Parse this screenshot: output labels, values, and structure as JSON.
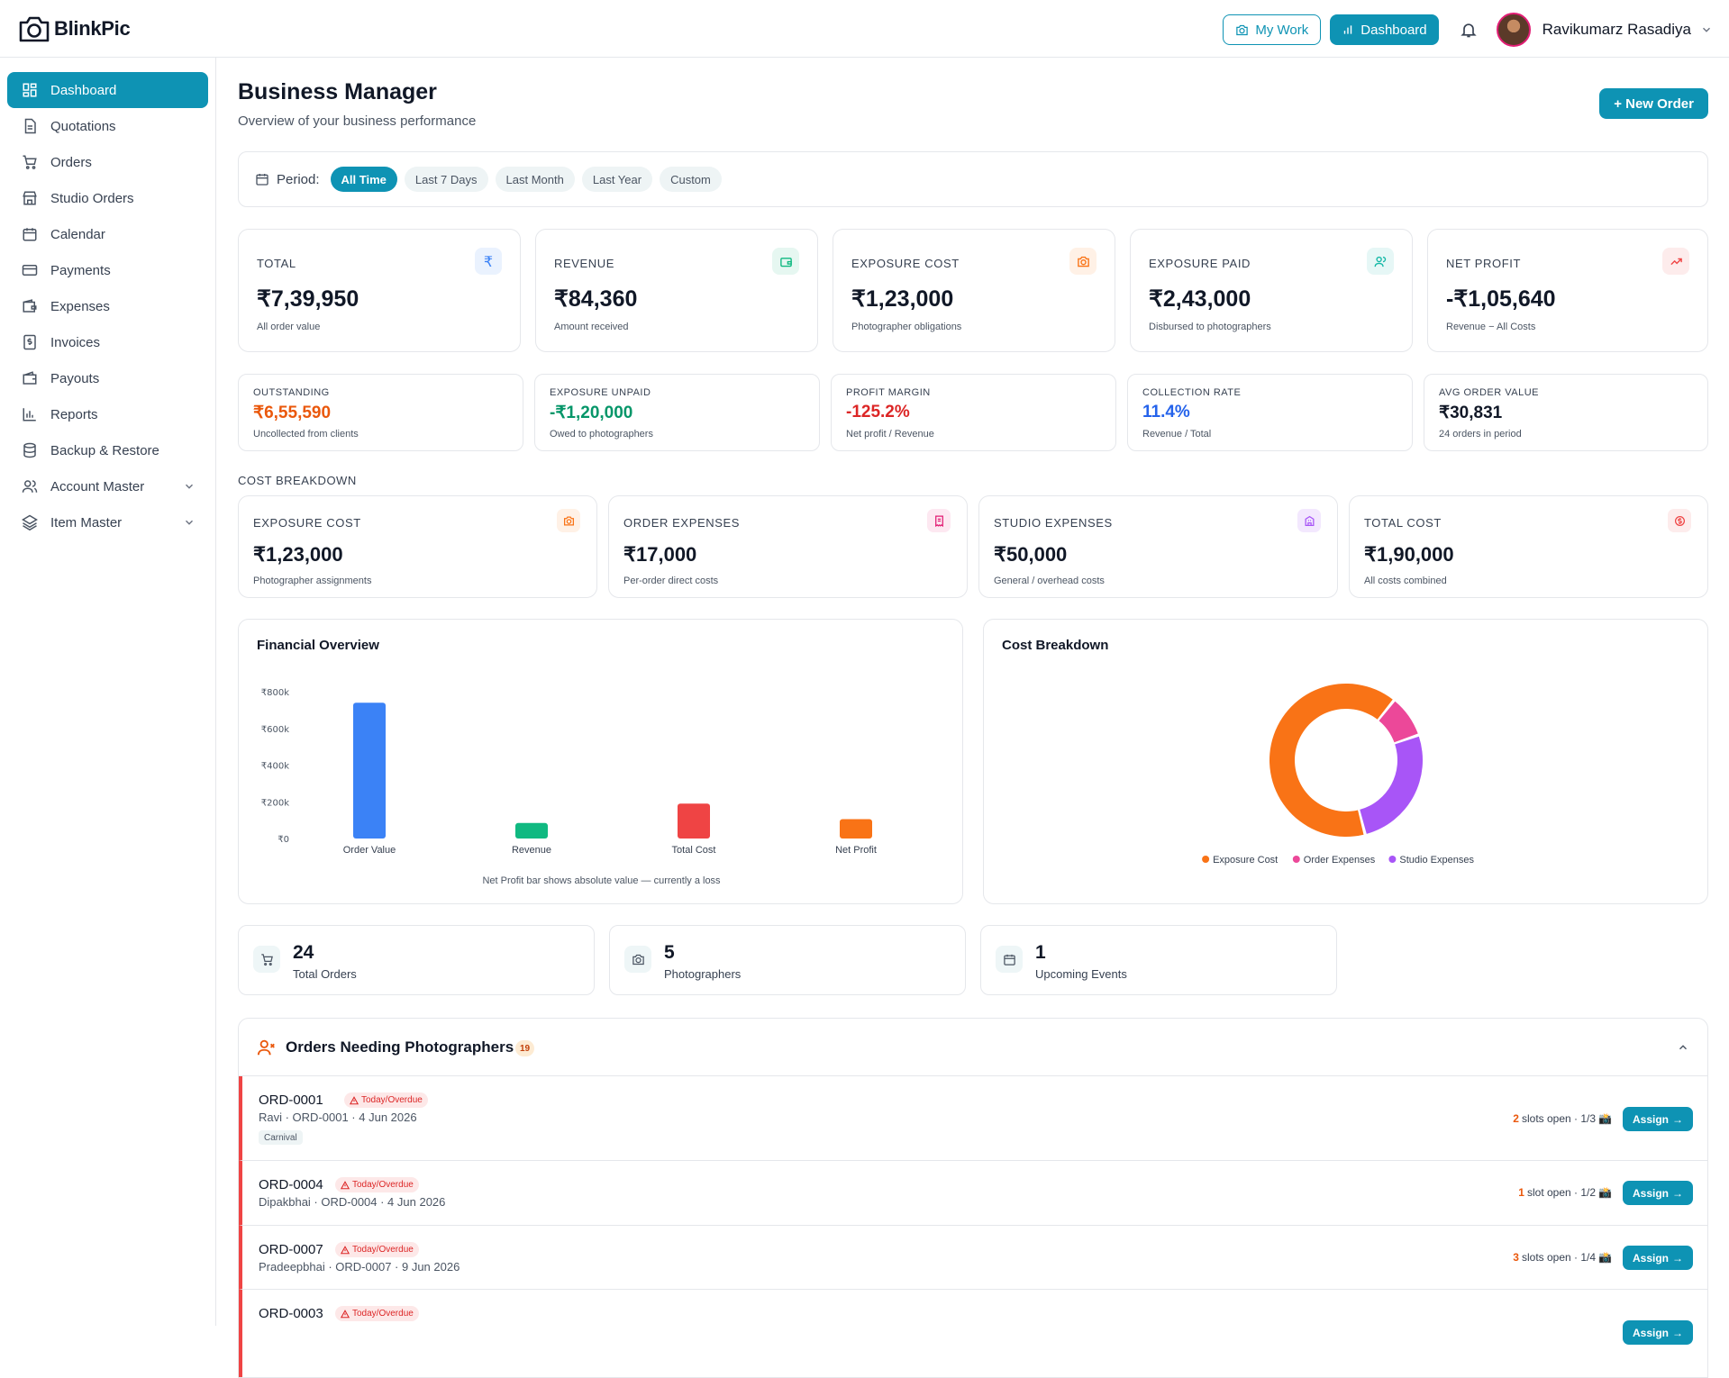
{
  "app": {
    "name": "BlinkPic"
  },
  "header": {
    "my_work_label": "My Work",
    "dashboard_label": "Dashboard",
    "user_name": "Ravikumarz Rasadiya"
  },
  "sidebar": {
    "items": [
      {
        "label": "Dashboard",
        "icon": "dashboard-icon",
        "active": true
      },
      {
        "label": "Quotations",
        "icon": "document-icon"
      },
      {
        "label": "Orders",
        "icon": "cart-icon"
      },
      {
        "label": "Studio Orders",
        "icon": "store-icon"
      },
      {
        "label": "Calendar",
        "icon": "calendar-icon"
      },
      {
        "label": "Payments",
        "icon": "credit-card-icon"
      },
      {
        "label": "Expenses",
        "icon": "wallet-icon"
      },
      {
        "label": "Invoices",
        "icon": "invoice-icon"
      },
      {
        "label": "Payouts",
        "icon": "payout-icon"
      },
      {
        "label": "Reports",
        "icon": "bar-chart-icon"
      },
      {
        "label": "Backup & Restore",
        "icon": "database-icon"
      },
      {
        "label": "Account Master",
        "icon": "users-icon",
        "expandable": true
      },
      {
        "label": "Item Master",
        "icon": "layers-icon",
        "expandable": true
      }
    ]
  },
  "page": {
    "title": "Business Manager",
    "subtitle": "Overview of your business performance",
    "new_order_label": "+ New Order"
  },
  "period": {
    "label": "Period:",
    "options": [
      "All Time",
      "Last 7 Days",
      "Last Month",
      "Last Year",
      "Custom"
    ],
    "selected": "All Time"
  },
  "kpis": [
    {
      "label": "TOTAL",
      "value": "₹7,39,950",
      "sub": "All order value",
      "icon": "rupee-icon",
      "color": "#3b82f6",
      "bg": "#eaf2fe"
    },
    {
      "label": "REVENUE",
      "value": "₹84,360",
      "sub": "Amount received",
      "icon": "wallet-icon",
      "color": "#10b981",
      "bg": "#e6f7f1"
    },
    {
      "label": "EXPOSURE COST",
      "value": "₹1,23,000",
      "sub": "Photographer obligations",
      "icon": "camera-icon",
      "color": "#f97316",
      "bg": "#fff1e6"
    },
    {
      "label": "EXPOSURE PAID",
      "value": "₹2,43,000",
      "sub": "Disbursed to photographers",
      "icon": "users-icon",
      "color": "#14b8a6",
      "bg": "#e6f7f6"
    },
    {
      "label": "NET PROFIT",
      "value": "-₹1,05,640",
      "sub": "Revenue − All Costs",
      "icon": "trending-icon",
      "color": "#ef4444",
      "bg": "#fdecec"
    }
  ],
  "stats": [
    {
      "label": "OUTSTANDING",
      "value": "₹6,55,590",
      "sub": "Uncollected from clients",
      "color": "#ea580c"
    },
    {
      "label": "EXPOSURE UNPAID",
      "value": "-₹1,20,000",
      "sub": "Owed to photographers",
      "color": "#059669"
    },
    {
      "label": "PROFIT MARGIN",
      "value": "-125.2%",
      "sub": "Net profit / Revenue",
      "color": "#dc2626"
    },
    {
      "label": "COLLECTION RATE",
      "value": "11.4%",
      "sub": "Revenue / Total",
      "color": "#2563eb"
    },
    {
      "label": "AVG ORDER VALUE",
      "value": "₹30,831",
      "sub": "24 orders in period",
      "color": "#111827"
    }
  ],
  "cost_breakdown": {
    "heading": "COST BREAKDOWN",
    "cards": [
      {
        "label": "EXPOSURE COST",
        "value": "₹1,23,000",
        "sub": "Photographer assignments",
        "icon": "camera-icon",
        "color": "#f97316",
        "bg": "#fff1e6"
      },
      {
        "label": "ORDER EXPENSES",
        "value": "₹17,000",
        "sub": "Per-order direct costs",
        "icon": "receipt-icon",
        "color": "#e11d74",
        "bg": "#fde8f1"
      },
      {
        "label": "STUDIO EXPENSES",
        "value": "₹50,000",
        "sub": "General / overhead costs",
        "icon": "building-icon",
        "color": "#a855f7",
        "bg": "#f3e8fe"
      },
      {
        "label": "TOTAL COST",
        "value": "₹1,90,000",
        "sub": "All costs combined",
        "icon": "dollar-circle-icon",
        "color": "#ef4444",
        "bg": "#fdecec"
      }
    ]
  },
  "financial_overview": {
    "title": "Financial Overview",
    "note": "Net Profit bar shows absolute value — currently a loss"
  },
  "cost_chart": {
    "title": "Cost Breakdown"
  },
  "chart_data": [
    {
      "type": "bar",
      "title": "Financial Overview",
      "categories": [
        "Order Value",
        "Revenue",
        "Total Cost",
        "Net Profit"
      ],
      "values": [
        739950,
        84360,
        190000,
        105640
      ],
      "colors": [
        "#3b82f6",
        "#10b981",
        "#ef4444",
        "#f97316"
      ],
      "yticks": [
        0,
        200000,
        400000,
        600000,
        800000
      ],
      "ytick_labels": [
        "₹0",
        "₹200k",
        "₹400k",
        "₹600k",
        "₹800k"
      ],
      "ylim": [
        0,
        800000
      ],
      "grid": false
    },
    {
      "type": "pie",
      "title": "Cost Breakdown",
      "donut": true,
      "labels": [
        "Exposure Cost",
        "Order Expenses",
        "Studio Expenses"
      ],
      "values": [
        123000,
        17000,
        50000
      ],
      "colors": [
        "#f97316",
        "#ec4899",
        "#a855f7"
      ],
      "legend": "bottom"
    }
  ],
  "summary": [
    {
      "value": "24",
      "label": "Total Orders",
      "icon": "cart-icon"
    },
    {
      "value": "5",
      "label": "Photographers",
      "icon": "camera-icon"
    },
    {
      "value": "1",
      "label": "Upcoming Events",
      "icon": "calendar-icon"
    }
  ],
  "needing": {
    "title": "Orders Needing Photographers",
    "count": "19",
    "rows": [
      {
        "id": "ORD-0001",
        "tag": "Today/Overdue",
        "meta": "Ravi · ORD-0001 · 4 Jun 2026",
        "chip": "Carnival",
        "open": "2",
        "slots": "slots open · 1/3",
        "assign": "Assign"
      },
      {
        "id": "ORD-0004",
        "tag": "Today/Overdue",
        "meta": "Dipakbhai · ORD-0004 · 4 Jun 2026",
        "open": "1",
        "slots": "slot open · 1/2",
        "assign": "Assign"
      },
      {
        "id": "ORD-0007",
        "tag": "Today/Overdue",
        "meta": "Pradeepbhai · ORD-0007 · 9 Jun 2026",
        "open": "3",
        "slots": "slots open · 1/4",
        "assign": "Assign"
      },
      {
        "id": "ORD-0003",
        "tag": "Today/Overdue",
        "assign": "Assign"
      }
    ]
  }
}
